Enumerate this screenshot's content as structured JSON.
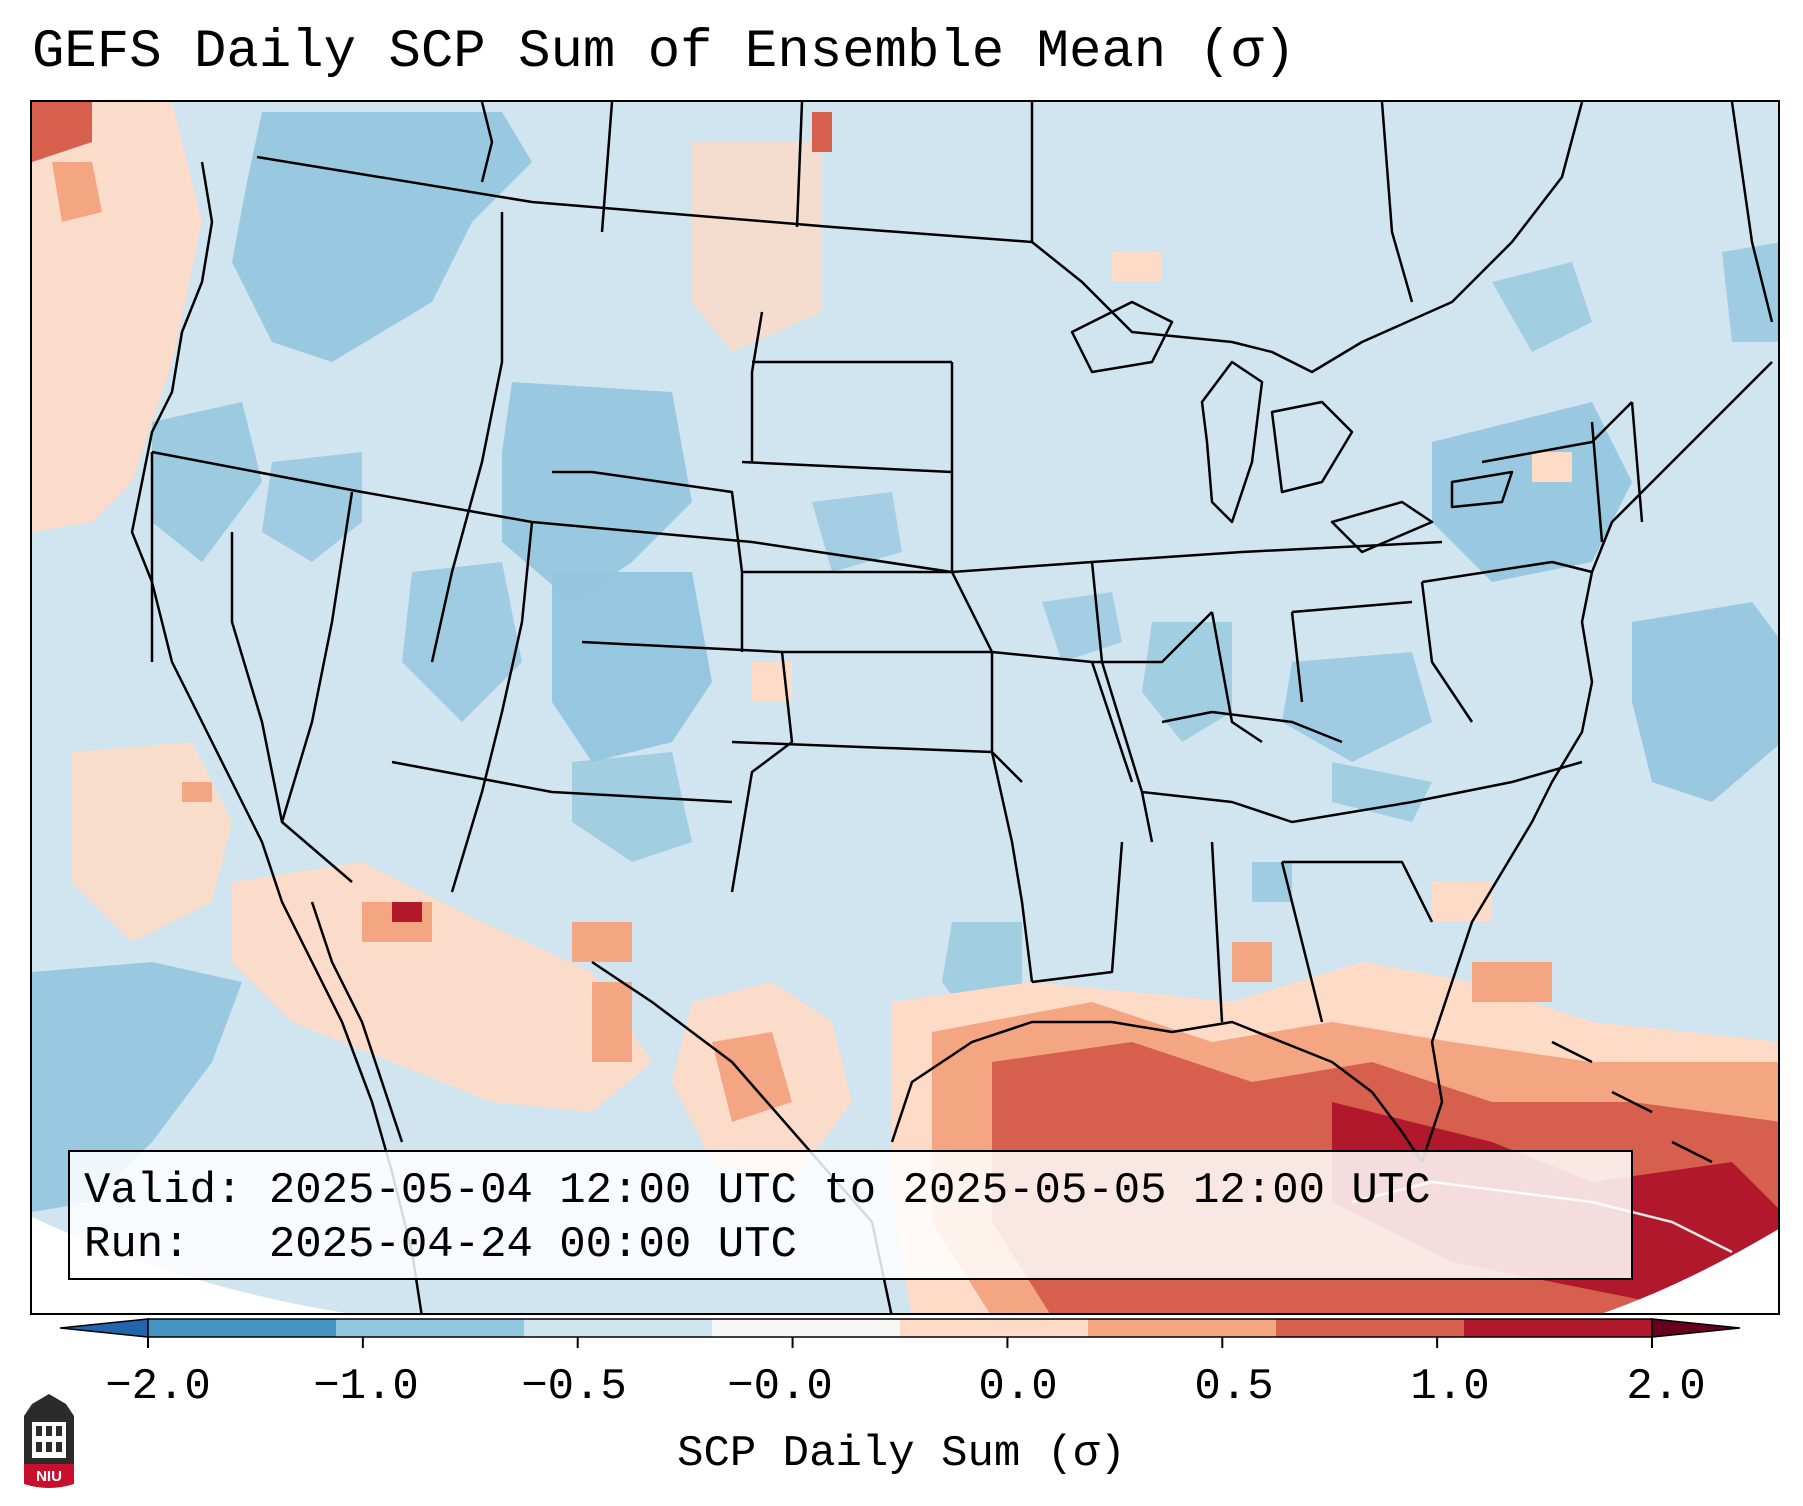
{
  "title": "GEFS Daily SCP Sum of Ensemble Mean (σ)",
  "info": {
    "valid_line": "Valid: 2025-05-04 12:00 UTC to 2025-05-05 12:00 UTC",
    "run_line": "Run:   2025-04-24 00:00 UTC"
  },
  "colorbar": {
    "label": "SCP Daily Sum (σ)",
    "ticks": [
      "−2.0",
      "−1.0",
      "−0.5",
      "−0.0",
      "0.0",
      "0.5",
      "1.0",
      "2.0"
    ],
    "colors": [
      "#4393c3",
      "#92c5de",
      "#d1e5f0",
      "#f7f7f7",
      "#fddbc7",
      "#f4a582",
      "#d6604d",
      "#b2182b"
    ],
    "extend": "both"
  },
  "logo": {
    "text": "NIU",
    "icon": "niu-logo-icon"
  },
  "map": {
    "region": "CONUS",
    "background_color": "#d1e5f0",
    "anomaly_areas": [
      {
        "category": "negative",
        "location": "northwest and northern rockies"
      },
      {
        "category": "negative",
        "location": "colorado and central rockies"
      },
      {
        "category": "negative",
        "location": "northeast and mid-atlantic"
      },
      {
        "category": "negative",
        "location": "western atlantic"
      },
      {
        "category": "negative",
        "location": "eastern pacific"
      },
      {
        "category": "positive",
        "location": "pacific coast offshore"
      },
      {
        "category": "positive",
        "location": "southwest and mexico"
      },
      {
        "category": "positive",
        "location": "gulf of mexico"
      },
      {
        "category": "positive",
        "location": "florida and caribbean"
      }
    ]
  }
}
